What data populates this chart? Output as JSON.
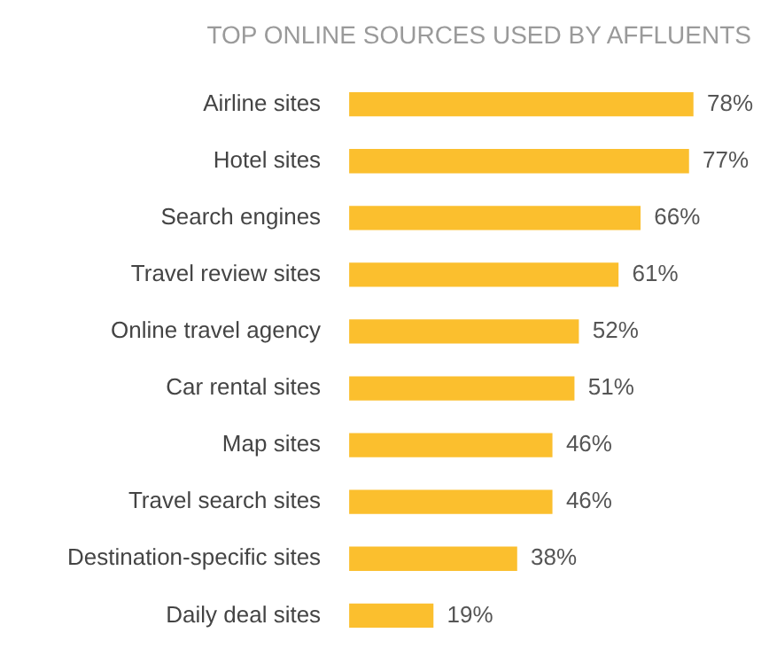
{
  "chart_data": {
    "type": "bar",
    "orientation": "horizontal",
    "title": "TOP ONLINE SOURCES USED BY AFFLUENTS",
    "categories": [
      "Airline sites",
      "Hotel sites",
      "Search engines",
      "Travel review sites",
      "Online travel agency",
      "Car rental sites",
      "Map sites",
      "Travel search sites",
      "Destination-specific sites",
      "Daily deal sites"
    ],
    "values": [
      78,
      77,
      66,
      61,
      52,
      51,
      46,
      46,
      38,
      19
    ],
    "value_labels": [
      "78%",
      "77%",
      "66%",
      "61%",
      "52%",
      "51%",
      "46%",
      "46%",
      "38%",
      "19%"
    ],
    "color": "#fbbf2e",
    "legend": false
  }
}
